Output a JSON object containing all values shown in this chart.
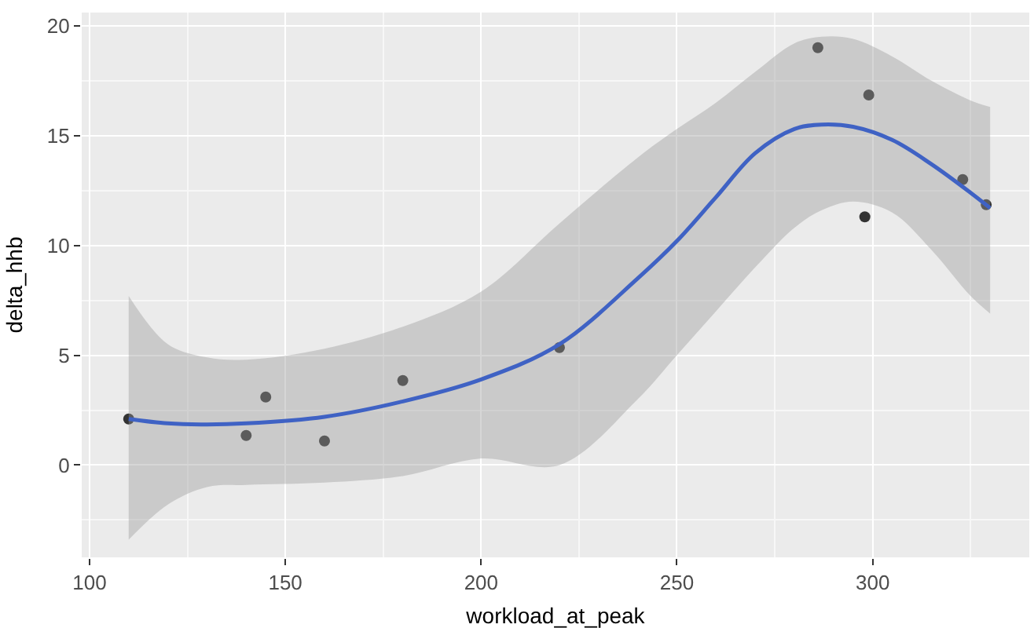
{
  "chart_data": {
    "type": "scatter",
    "xlabel": "workload_at_peak",
    "ylabel": "delta_hhb",
    "xlim": [
      98,
      340
    ],
    "ylim": [
      -4.2,
      20.6
    ],
    "xticks": [
      100,
      150,
      200,
      250,
      300
    ],
    "yticks": [
      0,
      5,
      10,
      15,
      20
    ],
    "grid": true,
    "series": [
      {
        "marker": "circle",
        "color": "#333333",
        "x": [
          110,
          140,
          145,
          160,
          180,
          220,
          286,
          298,
          299,
          323,
          329
        ],
        "values": [
          2.1,
          1.35,
          3.1,
          1.1,
          3.85,
          5.35,
          19.0,
          11.3,
          16.85,
          13.0,
          11.85
        ]
      },
      {
        "type": "line",
        "marker": "none",
        "line_style": "solid",
        "color": "#3f62c4",
        "x": [
          110,
          120,
          130,
          140,
          160,
          180,
          200,
          220,
          240,
          250,
          260,
          270,
          280,
          287,
          295,
          305,
          315,
          325,
          330
        ],
        "values": [
          2.1,
          1.9,
          1.85,
          1.9,
          2.2,
          2.9,
          3.9,
          5.5,
          8.5,
          10.2,
          12.2,
          14.2,
          15.3,
          15.5,
          15.4,
          14.8,
          13.7,
          12.4,
          11.7
        ],
        "lower": [
          -3.4,
          -1.8,
          -1.0,
          -0.9,
          -0.8,
          -0.5,
          0.3,
          0.0,
          3.0,
          5.0,
          7.0,
          9.0,
          10.8,
          11.6,
          12.0,
          11.5,
          9.8,
          7.7,
          6.9
        ],
        "upper": [
          7.7,
          5.5,
          4.9,
          4.8,
          5.3,
          6.3,
          7.9,
          11.0,
          14.0,
          15.3,
          16.5,
          17.9,
          19.2,
          19.5,
          19.4,
          18.6,
          17.5,
          16.6,
          16.3
        ]
      }
    ]
  }
}
